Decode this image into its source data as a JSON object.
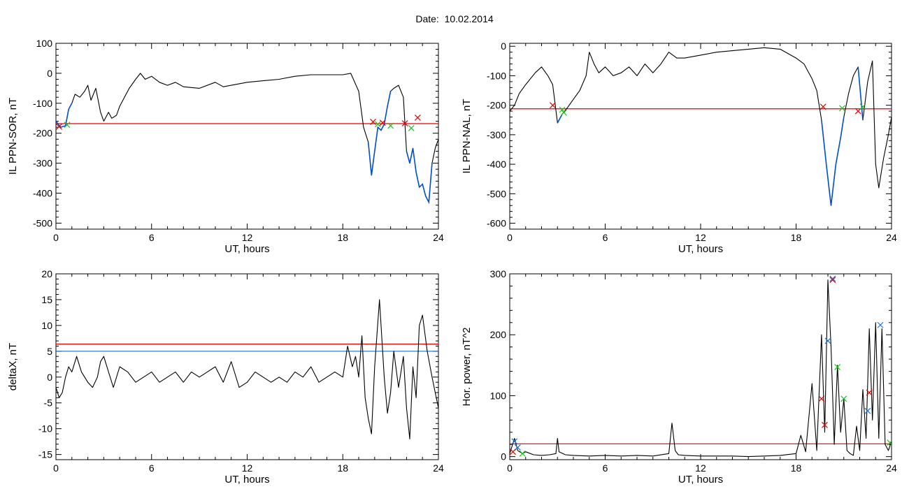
{
  "title": "Date:  10.02.2014",
  "colors": {
    "trace": "#000000",
    "threshold": "#e00000",
    "threshold2": "#1f6fc8",
    "highlight": "#0050d0",
    "marker_red": "#e00000",
    "marker_green": "#20c020",
    "marker_blue": "#2070d0"
  },
  "chart_data": [
    {
      "type": "line",
      "xlabel": "UT, hours",
      "ylabel": "IL PPN-SOR, nT",
      "xlim": [
        0,
        24
      ],
      "ylim": [
        -520,
        100
      ],
      "xticks": [
        0,
        6,
        12,
        18,
        24
      ],
      "yticks": [
        -500,
        -400,
        -300,
        -200,
        -100,
        0,
        100
      ],
      "series": [
        {
          "x": [
            0,
            0.3,
            0.6,
            0.8,
            1.0,
            1.2,
            1.5,
            1.8,
            2.0,
            2.2,
            2.5,
            2.8,
            3.0,
            3.3,
            3.5,
            3.8,
            4.0,
            4.3,
            4.6,
            5.0,
            5.3,
            5.6,
            6.0,
            6.5,
            7.0,
            7.5,
            8.0,
            9.0,
            10.0,
            10.5,
            11.0,
            12.0,
            13.0,
            14.0,
            15.0,
            16.0,
            17.0,
            18.0,
            18.5,
            19.0,
            19.3,
            19.6,
            19.8,
            20.0,
            20.2,
            20.4,
            20.6,
            20.8,
            21.0,
            21.2,
            21.5,
            21.8,
            22.0,
            22.2,
            22.4,
            22.6,
            22.8,
            23.0,
            23.2,
            23.4,
            23.6,
            23.8,
            24.0
          ],
          "y": [
            -160,
            -180,
            -175,
            -120,
            -100,
            -70,
            -80,
            -60,
            -40,
            -90,
            -50,
            -130,
            -160,
            -130,
            -150,
            -140,
            -110,
            -80,
            -50,
            -20,
            0,
            -20,
            -10,
            -30,
            -40,
            -30,
            -45,
            -50,
            -30,
            -45,
            -40,
            -30,
            -25,
            -20,
            -10,
            -5,
            -5,
            -5,
            0,
            -60,
            -180,
            -230,
            -340,
            -260,
            -180,
            -190,
            -170,
            -110,
            -60,
            -50,
            -40,
            -80,
            -260,
            -300,
            -250,
            -330,
            -380,
            -370,
            -410,
            -430,
            -300,
            -250,
            -220
          ]
        }
      ],
      "hlines": [
        {
          "y": -168,
          "color": "#e00000"
        }
      ],
      "highlight_ranges": [
        [
          0,
          1.0
        ],
        [
          19.6,
          21.0
        ],
        [
          22.0,
          23.6
        ]
      ],
      "markers": [
        {
          "x": 0.2,
          "y": -178,
          "color": "#e00000"
        },
        {
          "x": 0.7,
          "y": -172,
          "color": "#20c020"
        },
        {
          "x": 19.9,
          "y": -162,
          "color": "#e00000"
        },
        {
          "x": 20.2,
          "y": -170,
          "color": "#20c020"
        },
        {
          "x": 20.5,
          "y": -165,
          "color": "#e00000"
        },
        {
          "x": 21.0,
          "y": -175,
          "color": "#20c020"
        },
        {
          "x": 21.9,
          "y": -167,
          "color": "#e00000"
        },
        {
          "x": 22.3,
          "y": -183,
          "color": "#20c020"
        },
        {
          "x": 22.7,
          "y": -148,
          "color": "#e00000"
        }
      ]
    },
    {
      "type": "line",
      "xlabel": "UT, hours",
      "ylabel": "IL PPN-NAL, nT",
      "xlim": [
        0,
        24
      ],
      "ylim": [
        -620,
        10
      ],
      "xticks": [
        0,
        6,
        12,
        18,
        24
      ],
      "yticks": [
        -600,
        -500,
        -400,
        -300,
        -200,
        -100,
        0
      ],
      "series": [
        {
          "x": [
            0,
            0.3,
            0.6,
            1.0,
            1.3,
            1.6,
            2.0,
            2.4,
            2.7,
            3.0,
            3.3,
            3.6,
            4.0,
            4.4,
            4.8,
            5.0,
            5.3,
            5.6,
            6.0,
            6.5,
            7.0,
            7.5,
            8.0,
            8.5,
            9.0,
            9.5,
            10.0,
            10.5,
            11.0,
            12.0,
            13.0,
            14.0,
            15.0,
            16.0,
            17.0,
            18.0,
            18.5,
            19.0,
            19.3,
            19.6,
            19.9,
            20.2,
            20.5,
            20.8,
            21.0,
            21.3,
            21.6,
            21.9,
            22.2,
            22.5,
            22.8,
            23.0,
            23.2,
            23.5,
            23.8,
            24.0
          ],
          "y": [
            -220,
            -200,
            -160,
            -130,
            -110,
            -90,
            -70,
            -100,
            -130,
            -260,
            -230,
            -210,
            -180,
            -150,
            -100,
            -20,
            -60,
            -90,
            -70,
            -100,
            -90,
            -70,
            -100,
            -60,
            -90,
            -60,
            -20,
            -40,
            -40,
            -30,
            -20,
            -15,
            -10,
            -5,
            -10,
            -40,
            -60,
            -110,
            -150,
            -250,
            -400,
            -540,
            -400,
            -310,
            -240,
            -160,
            -100,
            -70,
            -250,
            -120,
            -50,
            -400,
            -480,
            -380,
            -300,
            -240
          ]
        }
      ],
      "hlines": [
        {
          "y": -212,
          "color": "#e00000"
        }
      ],
      "highlight_ranges": [
        [
          2.8,
          3.5
        ],
        [
          19.6,
          21.0
        ],
        [
          21.9,
          22.3
        ]
      ],
      "markers": [
        {
          "x": 2.7,
          "y": -200,
          "color": "#e00000"
        },
        {
          "x": 3.3,
          "y": -215,
          "color": "#20c020"
        },
        {
          "x": 3.4,
          "y": -225,
          "color": "#20c020"
        },
        {
          "x": 19.7,
          "y": -205,
          "color": "#e00000"
        },
        {
          "x": 20.9,
          "y": -210,
          "color": "#20c020"
        },
        {
          "x": 21.9,
          "y": -220,
          "color": "#e00000"
        },
        {
          "x": 22.2,
          "y": -205,
          "color": "#20c020"
        }
      ]
    },
    {
      "type": "line",
      "xlabel": "UT, hours",
      "ylabel": "deltaX, nT",
      "xlim": [
        0,
        24
      ],
      "ylim": [
        -16,
        20
      ],
      "xticks": [
        0,
        6,
        12,
        18,
        24
      ],
      "yticks": [
        -15,
        -10,
        -5,
        0,
        5,
        10,
        15,
        20
      ],
      "series": [
        {
          "x": [
            0,
            0.2,
            0.4,
            0.6,
            0.8,
            1.0,
            1.3,
            1.6,
            2.0,
            2.3,
            2.6,
            2.8,
            3.0,
            3.3,
            3.6,
            4.0,
            4.5,
            5.0,
            5.5,
            6.0,
            6.5,
            7.0,
            7.5,
            8.0,
            8.5,
            9.0,
            9.5,
            10.0,
            10.5,
            11.0,
            11.5,
            12.0,
            12.5,
            13.0,
            13.5,
            14.0,
            14.5,
            15.0,
            15.5,
            16.0,
            16.5,
            17.0,
            17.5,
            18.0,
            18.3,
            18.6,
            18.8,
            19.0,
            19.2,
            19.4,
            19.6,
            19.8,
            20.0,
            20.3,
            20.6,
            20.8,
            21.0,
            21.2,
            21.5,
            21.8,
            22.0,
            22.2,
            22.4,
            22.6,
            22.8,
            23.0,
            23.3,
            23.6,
            23.8,
            24.0
          ],
          "y": [
            -2,
            -4,
            -3,
            0,
            2,
            1,
            4,
            1,
            -1,
            -2,
            0,
            3,
            4,
            1,
            -2,
            2,
            1,
            -1,
            0,
            1,
            -1,
            0,
            1,
            -1,
            1,
            0,
            1,
            2,
            -1,
            3,
            -2,
            -1,
            1,
            0,
            -1,
            0,
            -1,
            1,
            0,
            2,
            -1,
            0,
            1,
            0,
            6,
            2,
            4,
            0,
            8,
            -4,
            -8,
            -11,
            2,
            15,
            0,
            -7,
            -3,
            5,
            -2,
            4,
            -6,
            -12,
            2,
            -4,
            10,
            12,
            5,
            0,
            -3,
            -6
          ]
        }
      ],
      "hlines": [
        {
          "y": 6.4,
          "color": "#e00000"
        },
        {
          "y": 5.0,
          "color": "#1f6fc8"
        }
      ],
      "highlight_ranges": [],
      "markers": []
    },
    {
      "type": "line",
      "xlabel": "UT, hours",
      "ylabel": "Hor. power, nT^2",
      "xlim": [
        0,
        24
      ],
      "ylim": [
        -5,
        300
      ],
      "xticks": [
        0,
        6,
        12,
        18,
        24
      ],
      "yticks": [
        0,
        100,
        200,
        300
      ],
      "series": [
        {
          "x": [
            0,
            0.3,
            0.5,
            0.8,
            1.0,
            1.5,
            2.0,
            2.5,
            2.9,
            3.0,
            3.1,
            3.5,
            4.0,
            5.0,
            6.0,
            7.0,
            8.0,
            9.0,
            10.0,
            10.2,
            10.4,
            10.6,
            11.0,
            12.0,
            13.0,
            14.0,
            15.0,
            16.0,
            17.0,
            18.0,
            18.3,
            18.6,
            19.0,
            19.3,
            19.6,
            19.8,
            20.0,
            20.2,
            20.4,
            20.6,
            20.8,
            21.0,
            21.2,
            21.4,
            21.6,
            21.8,
            22.0,
            22.2,
            22.4,
            22.6,
            22.8,
            23.0,
            23.2,
            23.4,
            23.6,
            23.8,
            24.0
          ],
          "y": [
            5,
            30,
            10,
            5,
            8,
            3,
            2,
            3,
            5,
            30,
            8,
            3,
            2,
            1,
            2,
            1,
            2,
            1,
            5,
            55,
            10,
            3,
            2,
            1,
            1,
            1,
            0,
            1,
            2,
            5,
            35,
            8,
            120,
            10,
            200,
            40,
            290,
            180,
            20,
            150,
            40,
            95,
            10,
            5,
            2,
            50,
            10,
            110,
            30,
            210,
            60,
            220,
            30,
            210,
            20,
            10,
            25
          ]
        }
      ],
      "hlines": [
        {
          "y": 21,
          "color": "#e00000"
        }
      ],
      "highlight_ranges": [],
      "markers": [
        {
          "x": 0.3,
          "y": 25,
          "color": "#2070d0"
        },
        {
          "x": 0.5,
          "y": 15,
          "color": "#2070d0"
        },
        {
          "x": 0.8,
          "y": 5,
          "color": "#20c020"
        },
        {
          "x": 0.2,
          "y": 8,
          "color": "#e00000"
        },
        {
          "x": 19.6,
          "y": 95,
          "color": "#e00000"
        },
        {
          "x": 19.8,
          "y": 52,
          "color": "#e00000"
        },
        {
          "x": 20.0,
          "y": 190,
          "color": "#2070d0"
        },
        {
          "x": 20.3,
          "y": 290,
          "color": "#e00000"
        },
        {
          "x": 20.3,
          "y": 292,
          "color": "#2070d0"
        },
        {
          "x": 20.6,
          "y": 147,
          "color": "#20c020"
        },
        {
          "x": 21.0,
          "y": 95,
          "color": "#20c020"
        },
        {
          "x": 22.5,
          "y": 75,
          "color": "#2070d0"
        },
        {
          "x": 22.6,
          "y": 105,
          "color": "#e00000"
        },
        {
          "x": 23.3,
          "y": 216,
          "color": "#2070d0"
        },
        {
          "x": 23.9,
          "y": 23,
          "color": "#20c020"
        }
      ]
    }
  ]
}
